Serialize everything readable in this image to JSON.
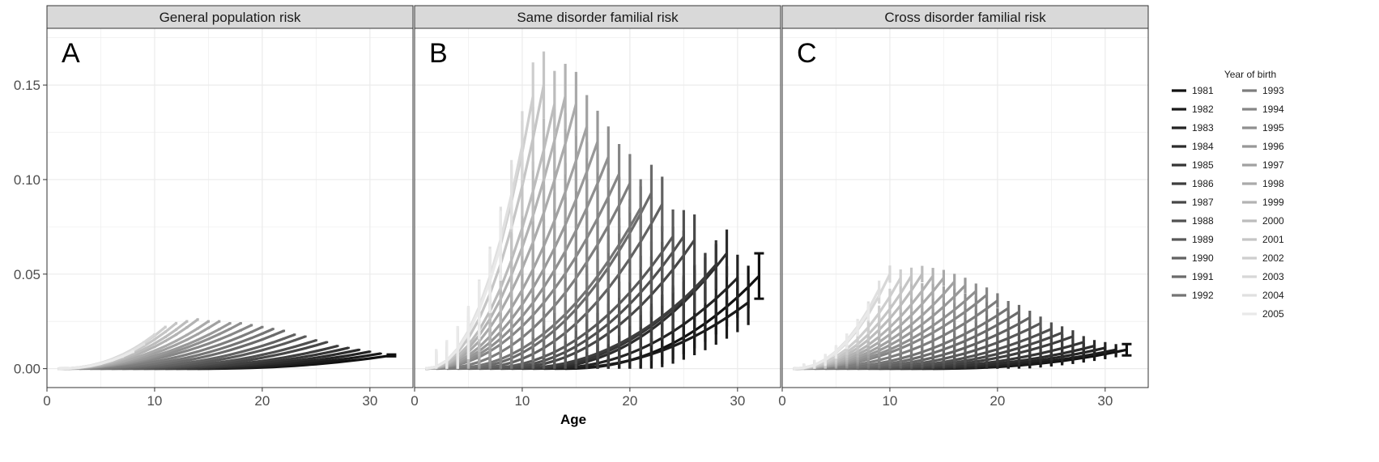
{
  "chart_data": {
    "type": "line",
    "xlabel": "Age",
    "ylabel": "",
    "xlim": [
      0,
      34
    ],
    "ylim": [
      -0.01,
      0.18
    ],
    "x_ticks": [
      0,
      10,
      20,
      30
    ],
    "y_ticks": [
      0.0,
      0.05,
      0.1,
      0.15
    ],
    "y_tick_labels": [
      "0.00",
      "0.05",
      "0.10",
      "0.15"
    ],
    "grid": true,
    "error_bars": true,
    "legend": {
      "title": "Year of birth",
      "placement": "right",
      "columns": [
        [
          "1981",
          "1982",
          "1983",
          "1984",
          "1985",
          "1986",
          "1987",
          "1988",
          "1989",
          "1990",
          "1991",
          "1992"
        ],
        [
          "1993",
          "1994",
          "1995",
          "1996",
          "1997",
          "1998",
          "1999",
          "2000",
          "2001",
          "2002",
          "2003",
          "2004",
          "2005"
        ]
      ]
    },
    "colors": {
      "darkest": "#111111",
      "lightest": "#e9e9e9",
      "strip_bg": "#d9d9d9",
      "grid": "#ebebeb",
      "panel_border": "#333333"
    },
    "cohorts": [
      1981,
      1982,
      1983,
      1984,
      1985,
      1986,
      1987,
      1988,
      1989,
      1990,
      1991,
      1992,
      1993,
      1994,
      1995,
      1996,
      1997,
      1998,
      1999,
      2000,
      2001,
      2002,
      2003,
      2004,
      2005
    ],
    "panels": [
      {
        "letter": "A",
        "strip": "General population risk",
        "last_age": {
          "1981": 32,
          "1982": 31,
          "1983": 30,
          "1984": 29,
          "1985": 28,
          "1986": 27,
          "1987": 26,
          "1988": 25,
          "1989": 24,
          "1990": 23,
          "1991": 22,
          "1992": 21,
          "1993": 20,
          "1994": 19,
          "1995": 18,
          "1996": 17,
          "1997": 16,
          "1998": 15,
          "1999": 14,
          "2000": 13,
          "2001": 12,
          "2002": 11,
          "2003": 10,
          "2004": 9,
          "2005": 8
        },
        "peak": {
          "1981": 0.007,
          "1982": 0.008,
          "1983": 0.009,
          "1984": 0.01,
          "1985": 0.011,
          "1986": 0.012,
          "1987": 0.014,
          "1988": 0.015,
          "1989": 0.017,
          "1990": 0.018,
          "1991": 0.02,
          "1992": 0.021,
          "1993": 0.022,
          "1994": 0.023,
          "1995": 0.024,
          "1996": 0.024,
          "1997": 0.025,
          "1998": 0.025,
          "1999": 0.026,
          "2000": 0.025,
          "2001": 0.024,
          "2002": 0.022,
          "2003": 0.018,
          "2004": 0.013,
          "2005": 0.009
        },
        "err": 0.0008
      },
      {
        "letter": "B",
        "strip": "Same disorder familial risk",
        "last_age": {
          "1981": 32,
          "1982": 31,
          "1983": 30,
          "1984": 29,
          "1985": 28,
          "1986": 27,
          "1987": 26,
          "1988": 25,
          "1989": 24,
          "1990": 23,
          "1991": 22,
          "1992": 21,
          "1993": 20,
          "1994": 19,
          "1995": 18,
          "1996": 17,
          "1997": 16,
          "1998": 15,
          "1999": 14,
          "2000": 13,
          "2001": 12,
          "2002": 11,
          "2003": 10,
          "2004": 9,
          "2005": 8
        },
        "peak": {
          "1981": 0.049,
          "1982": 0.035,
          "1983": 0.048,
          "1984": 0.061,
          "1985": 0.055,
          "1986": 0.048,
          "1987": 0.068,
          "1988": 0.07,
          "1989": 0.07,
          "1990": 0.087,
          "1991": 0.093,
          "1992": 0.085,
          "1993": 0.098,
          "1994": 0.103,
          "1995": 0.112,
          "1996": 0.12,
          "1997": 0.128,
          "1998": 0.14,
          "1999": 0.144,
          "2000": 0.14,
          "2001": 0.15,
          "2002": 0.144,
          "2003": 0.118,
          "2004": 0.092,
          "2005": 0.065
        },
        "err": 0.02
      },
      {
        "letter": "C",
        "strip": "Cross disorder familial risk",
        "last_age": {
          "1981": 32,
          "1982": 31,
          "1983": 30,
          "1984": 29,
          "1985": 28,
          "1986": 27,
          "1987": 26,
          "1988": 25,
          "1989": 24,
          "1990": 23,
          "1991": 22,
          "1992": 21,
          "1993": 20,
          "1994": 19,
          "1995": 18,
          "1996": 17,
          "1997": 16,
          "1998": 15,
          "1999": 14,
          "2000": 13,
          "2001": 12,
          "2002": 11,
          "2003": 10,
          "2004": 9,
          "2005": 8
        },
        "peak": {
          "1981": 0.01,
          "1982": 0.01,
          "1983": 0.011,
          "1984": 0.012,
          "1985": 0.014,
          "1986": 0.017,
          "1987": 0.019,
          "1988": 0.021,
          "1989": 0.024,
          "1990": 0.027,
          "1991": 0.03,
          "1992": 0.032,
          "1993": 0.036,
          "1994": 0.039,
          "1995": 0.041,
          "1996": 0.044,
          "1997": 0.046,
          "1998": 0.048,
          "1999": 0.049,
          "2000": 0.05,
          "2001": 0.049,
          "2002": 0.048,
          "2003": 0.05,
          "2004": 0.042,
          "2005": 0.03
        },
        "err": 0.005
      }
    ]
  }
}
